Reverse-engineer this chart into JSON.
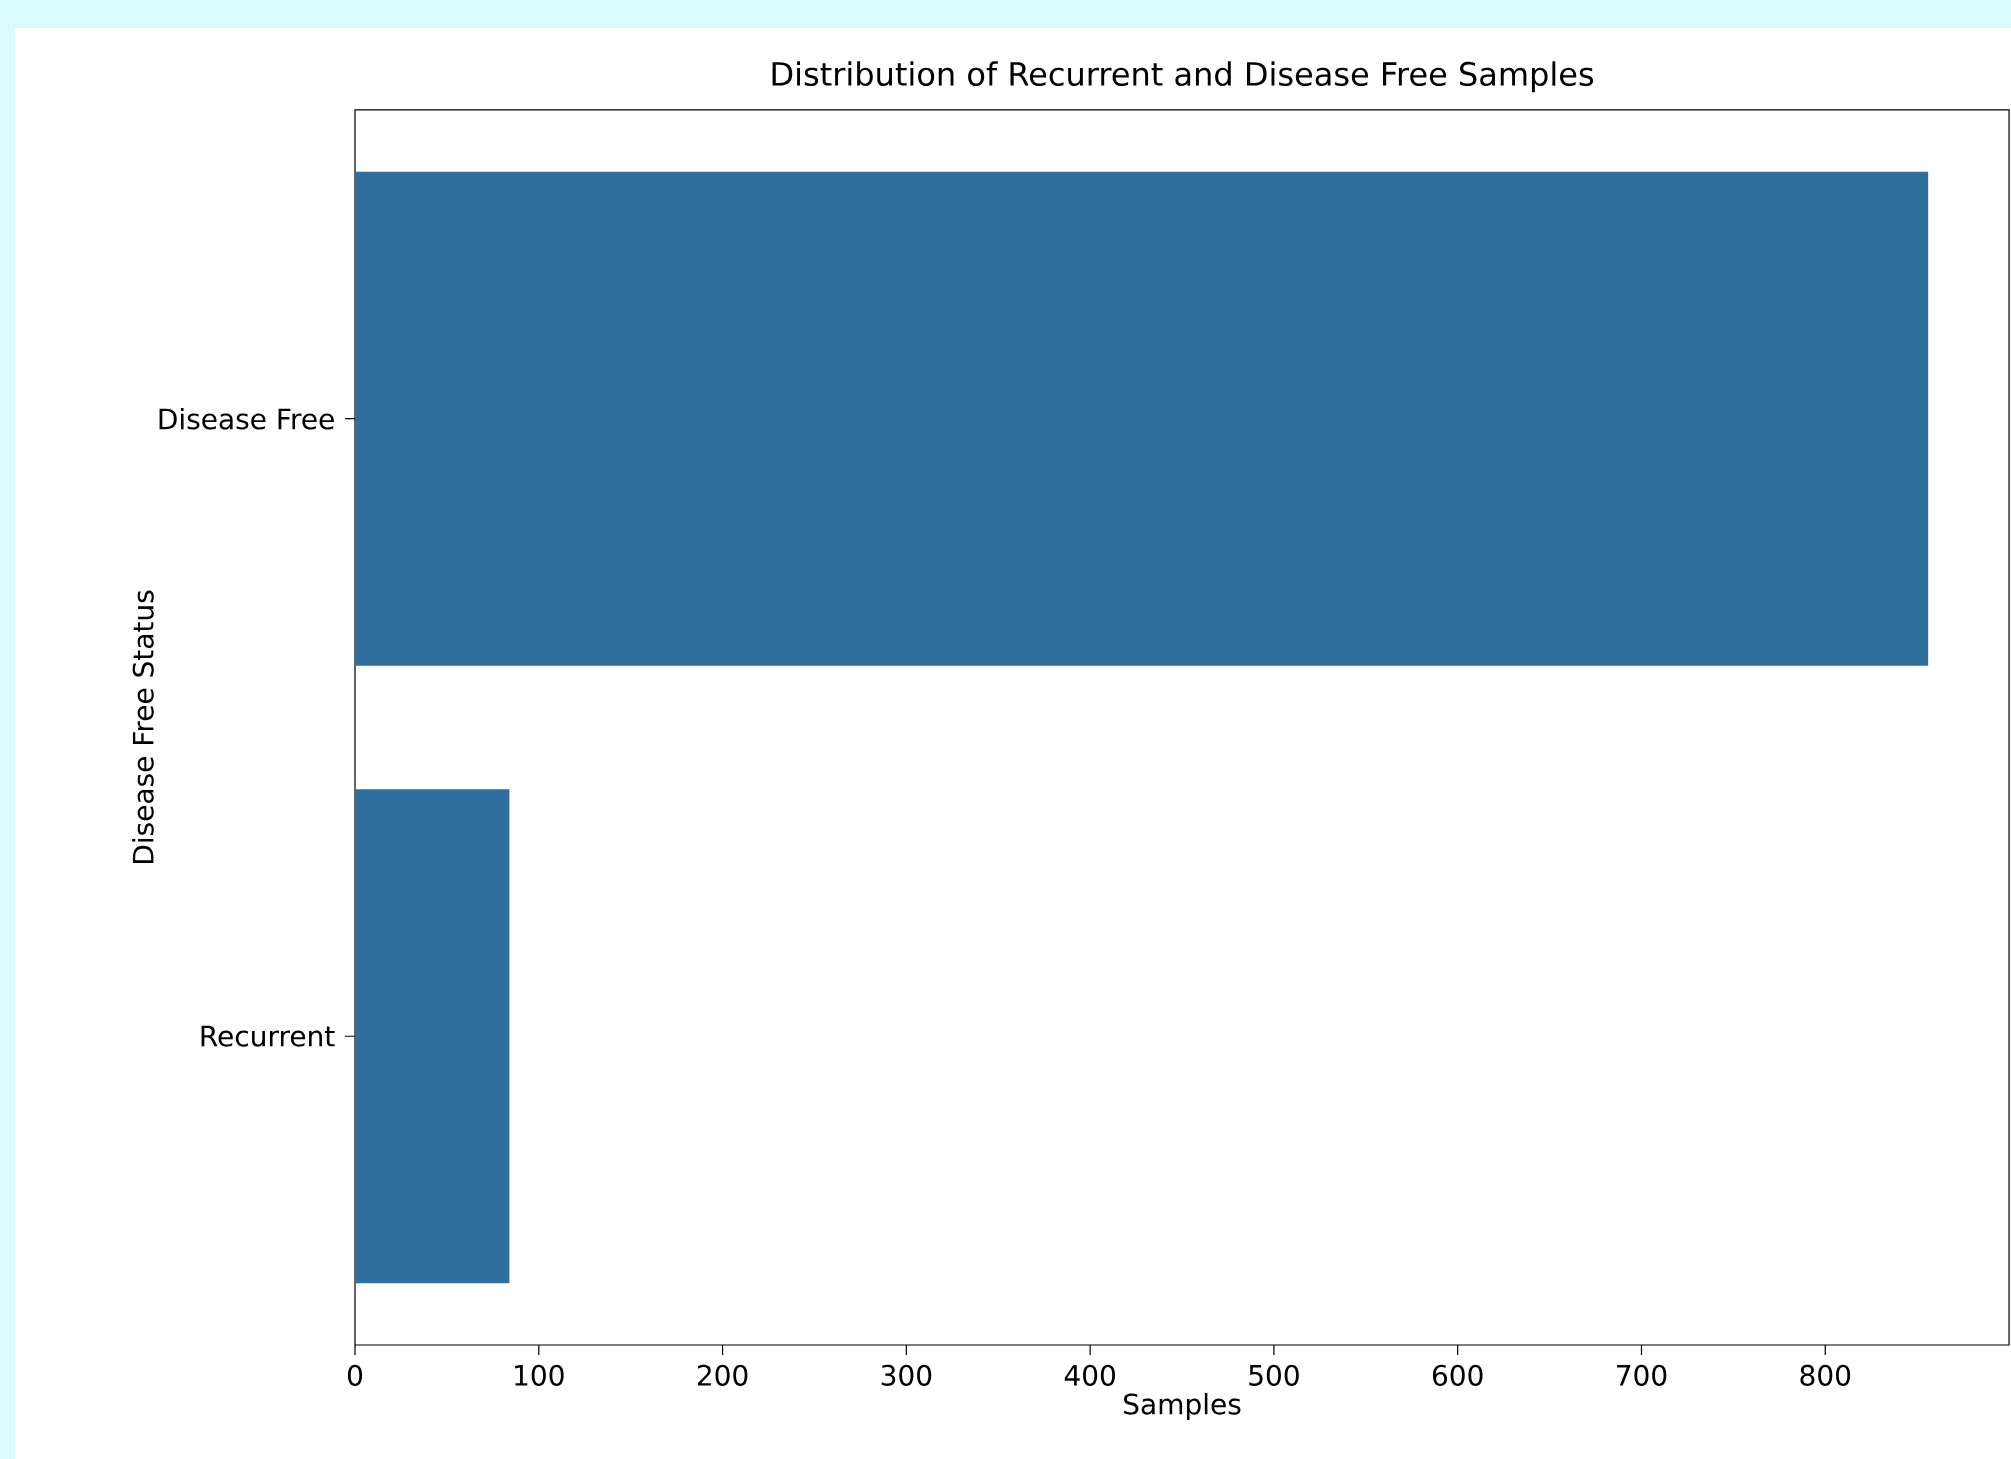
{
  "chart_data": {
    "type": "bar",
    "orientation": "horizontal",
    "title": "Distribution of Recurrent and Disease Free Samples",
    "xlabel": "Samples",
    "ylabel": "Disease Free Status",
    "categories": [
      "Disease Free",
      "Recurrent"
    ],
    "values": [
      856,
      84
    ],
    "color": "#2e6f9e",
    "xlim": [
      0,
      900
    ],
    "xticks": [
      0,
      100,
      200,
      300,
      400,
      500,
      600,
      700,
      800
    ]
  }
}
